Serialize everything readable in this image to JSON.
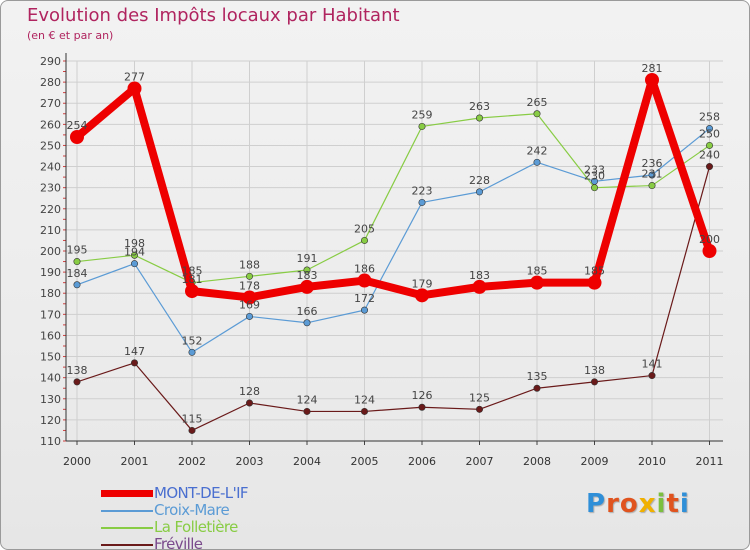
{
  "title": "Evolution des Impôts locaux par Habitant",
  "subtitle": "(en € et par an)",
  "logo": {
    "text": "Proxiti",
    "letter_colors": [
      "#2f8fd8",
      "#e0531e",
      "#e0531e",
      "#f0b000",
      "#7bbf3f",
      "#e0531e",
      "#2f8fd8"
    ]
  },
  "chart_data": {
    "type": "line",
    "title": "Evolution des Impôts locaux par Habitant",
    "subtitle": "(en € et par an)",
    "categories": [
      "2000",
      "2001",
      "2002",
      "2003",
      "2004",
      "2005",
      "2006",
      "2007",
      "2008",
      "2009",
      "2010",
      "2011"
    ],
    "ylim": [
      110,
      290
    ],
    "yticks": [
      110,
      120,
      130,
      140,
      150,
      160,
      170,
      180,
      190,
      200,
      210,
      220,
      230,
      240,
      250,
      260,
      270,
      280,
      290
    ],
    "grid": true,
    "legend_position": "bottom-left",
    "series": [
      {
        "name": "MONT-DE-L'IF",
        "color": "#ee0000",
        "emphasis": true,
        "values": [
          254,
          277,
          181,
          178,
          183,
          186,
          179,
          183,
          185,
          185,
          281,
          200
        ],
        "labels": [
          "254",
          "277",
          "181",
          "178",
          "183",
          "186",
          "179",
          "183",
          "185",
          "185",
          "281",
          "200"
        ]
      },
      {
        "name": "Croix-Mare",
        "color": "#5b9bd5",
        "emphasis": false,
        "values": [
          184,
          194,
          152,
          169,
          166,
          172,
          223,
          228,
          242,
          233,
          236,
          258
        ],
        "labels": [
          "184",
          "194",
          "152",
          "169",
          "166",
          "172",
          "223",
          "228",
          "242",
          "233",
          "236",
          "258"
        ]
      },
      {
        "name": "La Folletière",
        "color": "#88cc44",
        "emphasis": false,
        "values": [
          195,
          198,
          185,
          188,
          191,
          205,
          259,
          263,
          265,
          230,
          231,
          250
        ],
        "labels": [
          "195",
          "198",
          "185",
          "188",
          "191",
          "205",
          "259",
          "263",
          "265",
          "230",
          "231",
          "250"
        ]
      },
      {
        "name": "Fréville",
        "color": "#6a1a1a",
        "emphasis": false,
        "values": [
          138,
          147,
          115,
          128,
          124,
          124,
          126,
          125,
          135,
          138,
          141,
          240
        ],
        "labels": [
          "138",
          "147",
          "115",
          "128",
          "124",
          "124",
          "126",
          "125",
          "135",
          "138",
          "141",
          "240"
        ]
      }
    ]
  }
}
